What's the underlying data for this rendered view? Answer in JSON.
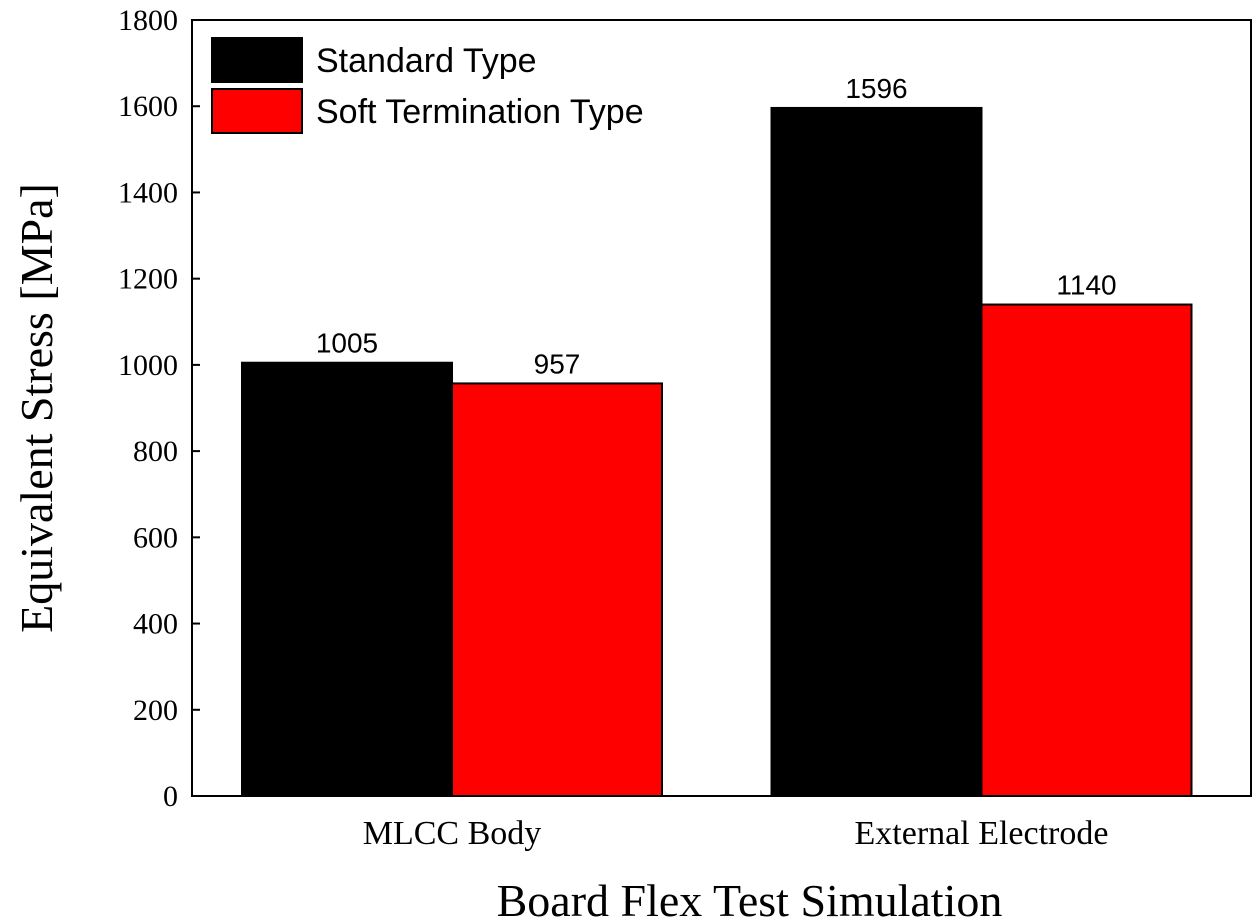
{
  "chart_data": {
    "type": "bar",
    "title": "",
    "xlabel": "Board Flex Test Simulation",
    "ylabel": "Equivalent Stress [MPa]",
    "categories": [
      "MLCC Body",
      "External Electrode"
    ],
    "series": [
      {
        "name": "Standard Type",
        "values": [
          1005,
          1596
        ],
        "color": "#000000"
      },
      {
        "name": "Soft Termination Type",
        "values": [
          957,
          1140
        ],
        "color": "#ff0000"
      }
    ],
    "ylim": [
      0,
      1800
    ],
    "yticks": [
      0,
      200,
      400,
      600,
      800,
      1000,
      1200,
      1400,
      1600,
      1800
    ],
    "grid": false,
    "legend": "top-left",
    "data_labels": true
  }
}
